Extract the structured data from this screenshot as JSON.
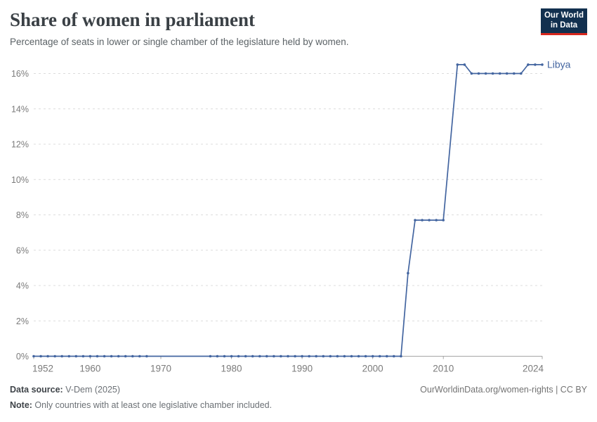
{
  "header": {
    "title": "Share of women in parliament",
    "subtitle": "Percentage of seats in lower or single chamber of the legislature held by women."
  },
  "logo": {
    "line1": "Our World",
    "line2": "in Data",
    "bg_color": "#12304f",
    "accent_color": "#d7271d"
  },
  "footer": {
    "source_label": "Data source:",
    "source_value": " V-Dem (2025)",
    "note_label": "Note:",
    "note_value": " Only countries with at least one legislative chamber included.",
    "right": "OurWorldinData.org/women-rights | CC BY"
  },
  "chart_data": {
    "type": "line",
    "title": "Share of women in parliament",
    "xlabel": "",
    "ylabel": "",
    "xlim": [
      1952,
      2024
    ],
    "ylim": [
      0,
      16.5
    ],
    "grid": "horizontal-dashed",
    "legend_position": "end-of-line-label",
    "y_ticks": [
      {
        "v": 0,
        "label": "0%"
      },
      {
        "v": 2,
        "label": "2%"
      },
      {
        "v": 4,
        "label": "4%"
      },
      {
        "v": 6,
        "label": "6%"
      },
      {
        "v": 8,
        "label": "8%"
      },
      {
        "v": 10,
        "label": "10%"
      },
      {
        "v": 12,
        "label": "12%"
      },
      {
        "v": 14,
        "label": "14%"
      },
      {
        "v": 16,
        "label": "16%"
      }
    ],
    "x_ticks": [
      {
        "v": 1952,
        "label": "1952",
        "align": "start"
      },
      {
        "v": 1960,
        "label": "1960",
        "align": "middle"
      },
      {
        "v": 1970,
        "label": "1970",
        "align": "middle"
      },
      {
        "v": 1980,
        "label": "1980",
        "align": "middle"
      },
      {
        "v": 1990,
        "label": "1990",
        "align": "middle"
      },
      {
        "v": 2000,
        "label": "2000",
        "align": "middle"
      },
      {
        "v": 2010,
        "label": "2010",
        "align": "middle"
      },
      {
        "v": 2024,
        "label": "2024",
        "align": "end"
      }
    ],
    "series": [
      {
        "name": "Libya",
        "color": "#4365a0",
        "points": [
          [
            1952,
            0
          ],
          [
            1953,
            0
          ],
          [
            1954,
            0
          ],
          [
            1955,
            0
          ],
          [
            1956,
            0
          ],
          [
            1957,
            0
          ],
          [
            1958,
            0
          ],
          [
            1959,
            0
          ],
          [
            1960,
            0
          ],
          [
            1961,
            0
          ],
          [
            1962,
            0
          ],
          [
            1963,
            0
          ],
          [
            1964,
            0
          ],
          [
            1965,
            0
          ],
          [
            1966,
            0
          ],
          [
            1967,
            0
          ],
          [
            1968,
            0
          ],
          [
            1969,
            null
          ],
          [
            1970,
            null
          ],
          [
            1971,
            null
          ],
          [
            1972,
            null
          ],
          [
            1973,
            null
          ],
          [
            1974,
            null
          ],
          [
            1975,
            null
          ],
          [
            1976,
            null
          ],
          [
            1977,
            0
          ],
          [
            1978,
            0
          ],
          [
            1979,
            0
          ],
          [
            1980,
            0
          ],
          [
            1981,
            0
          ],
          [
            1982,
            0
          ],
          [
            1983,
            0
          ],
          [
            1984,
            0
          ],
          [
            1985,
            0
          ],
          [
            1986,
            0
          ],
          [
            1987,
            0
          ],
          [
            1988,
            0
          ],
          [
            1989,
            0
          ],
          [
            1990,
            0
          ],
          [
            1991,
            0
          ],
          [
            1992,
            0
          ],
          [
            1993,
            0
          ],
          [
            1994,
            0
          ],
          [
            1995,
            0
          ],
          [
            1996,
            0
          ],
          [
            1997,
            0
          ],
          [
            1998,
            0
          ],
          [
            1999,
            0
          ],
          [
            2000,
            0
          ],
          [
            2001,
            0
          ],
          [
            2002,
            0
          ],
          [
            2003,
            0
          ],
          [
            2004,
            0
          ],
          [
            2005,
            4.7
          ],
          [
            2006,
            7.7
          ],
          [
            2007,
            7.7
          ],
          [
            2008,
            7.7
          ],
          [
            2009,
            7.7
          ],
          [
            2010,
            7.7
          ],
          [
            2011,
            null
          ],
          [
            2012,
            16.5
          ],
          [
            2013,
            16.5
          ],
          [
            2014,
            16
          ],
          [
            2015,
            16
          ],
          [
            2016,
            16
          ],
          [
            2017,
            16
          ],
          [
            2018,
            16
          ],
          [
            2019,
            16
          ],
          [
            2020,
            16
          ],
          [
            2021,
            16
          ],
          [
            2022,
            16.5
          ],
          [
            2023,
            16.5
          ],
          [
            2024,
            16.5
          ]
        ]
      }
    ],
    "colors": {
      "gridline": "#dcdcdc",
      "axis": "#a5a5a5",
      "tick_label": "#7b7b7b"
    }
  }
}
